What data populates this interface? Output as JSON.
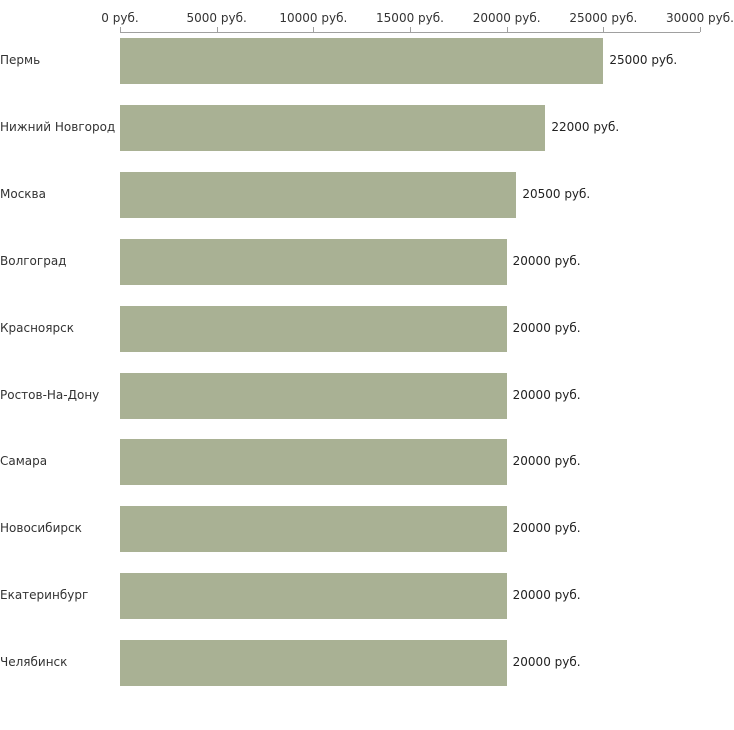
{
  "chart_data": {
    "type": "bar",
    "orientation": "horizontal",
    "title": "",
    "categories": [
      "Пермь",
      "Нижний Новгород",
      "Москва",
      "Волгоград",
      "Красноярск",
      "Ростов-На-Дону",
      "Самара",
      "Новосибирск",
      "Екатеринбург",
      "Челябинск"
    ],
    "values": [
      25000,
      22000,
      20500,
      20000,
      20000,
      20000,
      20000,
      20000,
      20000,
      20000
    ],
    "value_labels": [
      "25000 руб.",
      "22000 руб.",
      "20500 руб.",
      "20000 руб.",
      "20000 руб.",
      "20000 руб.",
      "20000 руб.",
      "20000 руб.",
      "20000 руб.",
      "20000 руб."
    ],
    "x_ticks": [
      {
        "value": 0,
        "label": "0 руб."
      },
      {
        "value": 5000,
        "label": "5000 руб."
      },
      {
        "value": 10000,
        "label": "10000 руб."
      },
      {
        "value": 15000,
        "label": "15000 руб."
      },
      {
        "value": 20000,
        "label": "20000 руб."
      },
      {
        "value": 25000,
        "label": "25000 руб."
      },
      {
        "value": 30000,
        "label": "30000 руб."
      }
    ],
    "xlim": [
      0,
      30000
    ],
    "bar_color": "#a9b194",
    "axis_color": "#a0a0a0",
    "grid": false,
    "legend": false
  }
}
